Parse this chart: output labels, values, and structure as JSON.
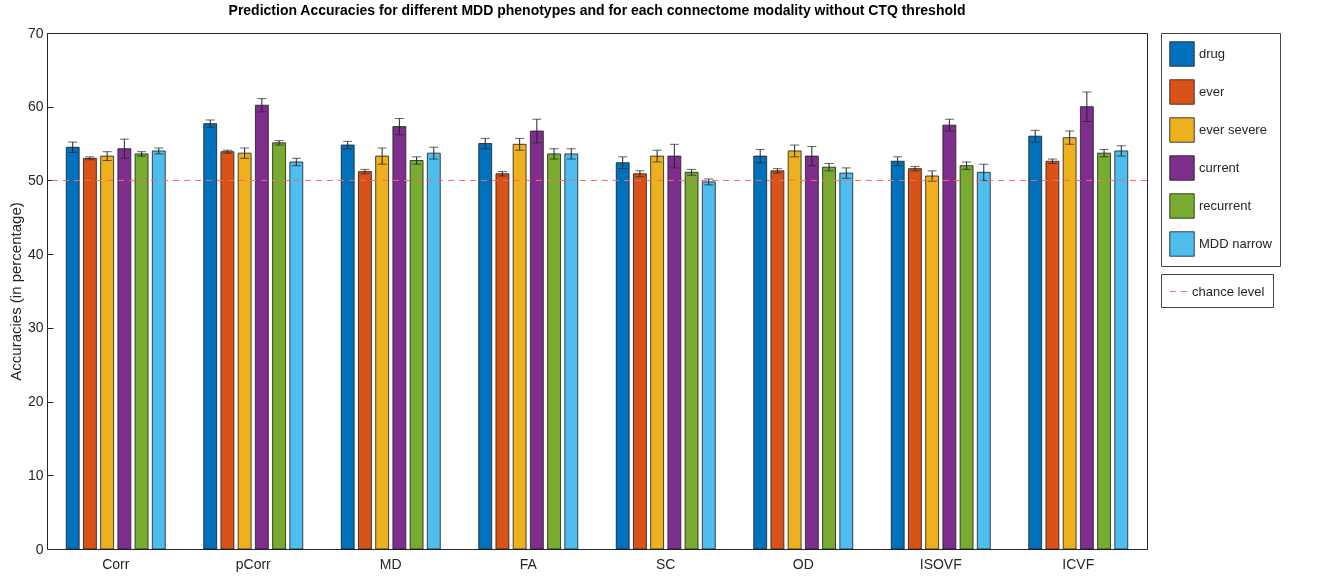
{
  "chart_data": {
    "type": "bar",
    "title": "Prediction Accuracies for different MDD phenotypes and for each connectome modality without CTQ threshold",
    "ylabel": "Accuracies (in percentage)",
    "categories": [
      "Corr",
      "pCorr",
      "MD",
      "FA",
      "SC",
      "OD",
      "ISOVF",
      "ICVF"
    ],
    "series": [
      {
        "name": "drug",
        "color": "#0072bd",
        "values": [
          54.5,
          57.7,
          54.8,
          55.0,
          52.4,
          53.3,
          52.6,
          56.0
        ],
        "errors": [
          0.7,
          0.5,
          0.5,
          0.7,
          0.8,
          0.9,
          0.6,
          0.8
        ]
      },
      {
        "name": "ever",
        "color": "#d95319",
        "values": [
          53.0,
          53.9,
          51.2,
          50.9,
          50.9,
          51.3,
          51.6,
          52.6
        ],
        "errors": [
          0.2,
          0.2,
          0.3,
          0.3,
          0.4,
          0.3,
          0.3,
          0.3
        ]
      },
      {
        "name": "ever severe",
        "color": "#edb120",
        "values": [
          53.3,
          53.7,
          53.3,
          54.9,
          53.3,
          54.0,
          50.6,
          55.8
        ],
        "errors": [
          0.6,
          0.7,
          1.1,
          0.8,
          0.8,
          0.8,
          0.7,
          0.9
        ]
      },
      {
        "name": "current",
        "color": "#7e2f8e",
        "values": [
          54.3,
          60.2,
          57.3,
          56.7,
          53.3,
          53.3,
          57.5,
          60.0
        ],
        "errors": [
          1.3,
          0.9,
          1.1,
          1.6,
          1.6,
          1.3,
          0.8,
          2.0
        ]
      },
      {
        "name": "recurrent",
        "color": "#77ac30",
        "values": [
          53.6,
          55.1,
          52.7,
          53.6,
          51.1,
          51.8,
          52.0,
          53.7
        ],
        "errors": [
          0.3,
          0.3,
          0.5,
          0.7,
          0.4,
          0.5,
          0.5,
          0.5
        ]
      },
      {
        "name": "MDD narrow",
        "color": "#4dbeee",
        "values": [
          54.0,
          52.5,
          53.7,
          53.6,
          49.8,
          51.0,
          51.1,
          54.0
        ],
        "errors": [
          0.4,
          0.5,
          0.8,
          0.7,
          0.4,
          0.7,
          1.1,
          0.7
        ]
      }
    ],
    "ref_lines": [
      {
        "axis": "y",
        "value": 50,
        "label": "chance level",
        "color": "#ff6666",
        "line_style": "dashed"
      }
    ],
    "ylim": [
      0,
      70
    ],
    "yticks": [
      0,
      10,
      20,
      30,
      40,
      50,
      60,
      70
    ],
    "grid": false,
    "legend": "right"
  }
}
